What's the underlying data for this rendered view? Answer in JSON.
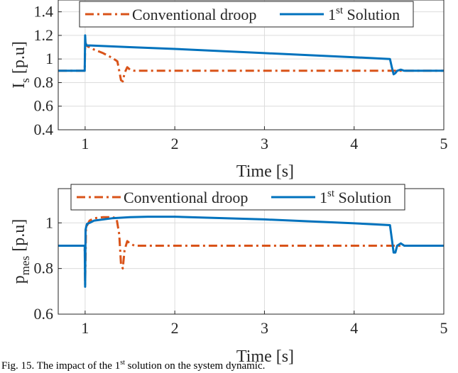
{
  "caption": {
    "prefix": "Fig. 15. The impact of the 1",
    "sup": "st",
    "suffix": " solution on the system dynamic."
  },
  "chart_data": [
    {
      "type": "line",
      "xlabel": "Time [s]",
      "ylabel_main": "I",
      "ylabel_sub": "s",
      "ylabel_unit": "[p.u]",
      "xlim": [
        0.7,
        5.0
      ],
      "ylim": [
        0.4,
        1.5
      ],
      "xticks": [
        1,
        2,
        3,
        4,
        5
      ],
      "yticks": [
        0.4,
        0.6,
        0.8,
        1,
        1.2,
        1.4
      ],
      "grid": true,
      "legend_position": "top",
      "series": [
        {
          "name": "Conventional droop",
          "color": "#D95319",
          "style": "dashdot",
          "x": [
            0.7,
            0.995,
            1.0,
            1.003,
            1.02,
            1.1,
            1.2,
            1.3,
            1.36,
            1.38,
            1.4,
            1.42,
            1.44,
            1.47,
            1.5,
            1.55,
            1.6,
            2.0,
            3.0,
            4.0,
            5.0
          ],
          "y": [
            0.9,
            0.9,
            1.11,
            1.14,
            1.11,
            1.08,
            1.05,
            1.01,
            0.98,
            0.9,
            0.82,
            0.81,
            0.88,
            0.93,
            0.91,
            0.9,
            0.9,
            0.9,
            0.9,
            0.9,
            0.9
          ]
        },
        {
          "name": "1st Solution",
          "name_main": "1",
          "name_sup": "st",
          "name_rest": " Solution",
          "color": "#0072BD",
          "style": "solid",
          "x": [
            0.7,
            0.995,
            1.0,
            1.005,
            1.02,
            1.05,
            1.5,
            2.0,
            3.0,
            4.0,
            4.4,
            4.42,
            4.44,
            4.46,
            4.48,
            4.52,
            4.56,
            4.6,
            5.0
          ],
          "y": [
            0.9,
            0.9,
            1.2,
            1.13,
            1.115,
            1.115,
            1.1,
            1.085,
            1.05,
            1.015,
            1.0,
            0.93,
            0.87,
            0.88,
            0.9,
            0.91,
            0.9,
            0.9,
            0.9
          ]
        }
      ]
    },
    {
      "type": "line",
      "xlabel": "Time [s]",
      "ylabel_main": "p",
      "ylabel_sub": "mes",
      "ylabel_unit": "[p.u]",
      "xlim": [
        0.7,
        5.0
      ],
      "ylim": [
        0.6,
        1.15
      ],
      "xticks": [
        1,
        2,
        3,
        4,
        5
      ],
      "yticks": [
        0.6,
        0.8,
        1
      ],
      "grid": true,
      "legend_position": "top",
      "series": [
        {
          "name": "Conventional droop",
          "color": "#D95319",
          "style": "dashdot",
          "x": [
            0.7,
            0.995,
            1.0,
            1.01,
            1.05,
            1.1,
            1.2,
            1.3,
            1.35,
            1.38,
            1.4,
            1.42,
            1.44,
            1.47,
            1.5,
            1.55,
            1.6,
            2.0,
            3.0,
            4.0,
            5.0
          ],
          "y": [
            0.9,
            0.9,
            0.73,
            0.98,
            1.01,
            1.02,
            1.025,
            1.025,
            1.02,
            0.95,
            0.82,
            0.8,
            0.88,
            0.92,
            0.91,
            0.9,
            0.9,
            0.9,
            0.9,
            0.9,
            0.9
          ]
        },
        {
          "name": "1st Solution",
          "name_main": "1",
          "name_sup": "st",
          "name_rest": " Solution",
          "color": "#0072BD",
          "style": "solid",
          "x": [
            0.7,
            0.995,
            1.0,
            1.005,
            1.02,
            1.05,
            1.1,
            1.3,
            1.5,
            1.7,
            2.0,
            3.0,
            4.0,
            4.4,
            4.42,
            4.44,
            4.46,
            4.48,
            4.52,
            4.56,
            4.6,
            5.0
          ],
          "y": [
            0.9,
            0.9,
            0.72,
            0.97,
            0.995,
            1.0,
            1.01,
            1.02,
            1.025,
            1.027,
            1.027,
            1.015,
            0.998,
            0.99,
            0.93,
            0.87,
            0.87,
            0.9,
            0.91,
            0.9,
            0.9,
            0.9
          ]
        }
      ]
    }
  ]
}
